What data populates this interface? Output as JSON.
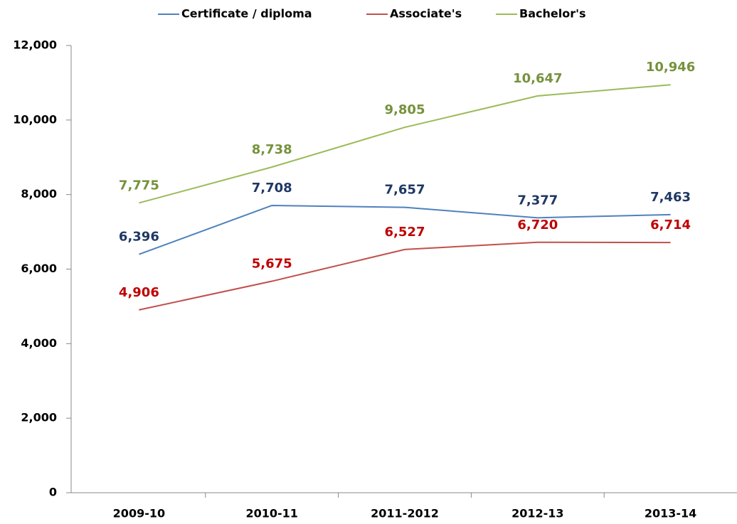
{
  "chart_data": {
    "type": "line",
    "categories": [
      "2009-10",
      "2010-11",
      "2011-2012",
      "2012-13",
      "2013-14"
    ],
    "series": [
      {
        "name": "Certificate / diploma",
        "color": "#4f81bd",
        "label_color": "#1f3864",
        "values": [
          6396,
          7708,
          7657,
          7377,
          7463
        ],
        "value_labels": [
          "6,396",
          "7,708",
          "7,657",
          "7,377",
          "7,463"
        ]
      },
      {
        "name": "Associate's",
        "color": "#c0504d",
        "label_color": "#c00000",
        "values": [
          4906,
          5675,
          6527,
          6720,
          6714
        ],
        "value_labels": [
          "4,906",
          "5,675",
          "6,527",
          "6,720",
          "6,714"
        ]
      },
      {
        "name": "Bachelor's",
        "color": "#9bbb59",
        "label_color": "#76923c",
        "values": [
          7775,
          8738,
          9805,
          10647,
          10946
        ],
        "value_labels": [
          "7,775",
          "8,738",
          "9,805",
          "10,647",
          "10,946"
        ]
      }
    ],
    "ylim": [
      0,
      12000
    ],
    "yticks": [
      0,
      {
        "value": 2000,
        "label": "2,000"
      },
      {
        "value": 4000,
        "label": "4,000"
      },
      {
        "value": 6000,
        "label": "6,000"
      },
      {
        "value": 8000,
        "label": "8,000"
      },
      {
        "value": 10000,
        "label": "10,000"
      },
      {
        "value": 12000,
        "label": "12,000"
      }
    ],
    "legend": "top",
    "grid": false
  }
}
